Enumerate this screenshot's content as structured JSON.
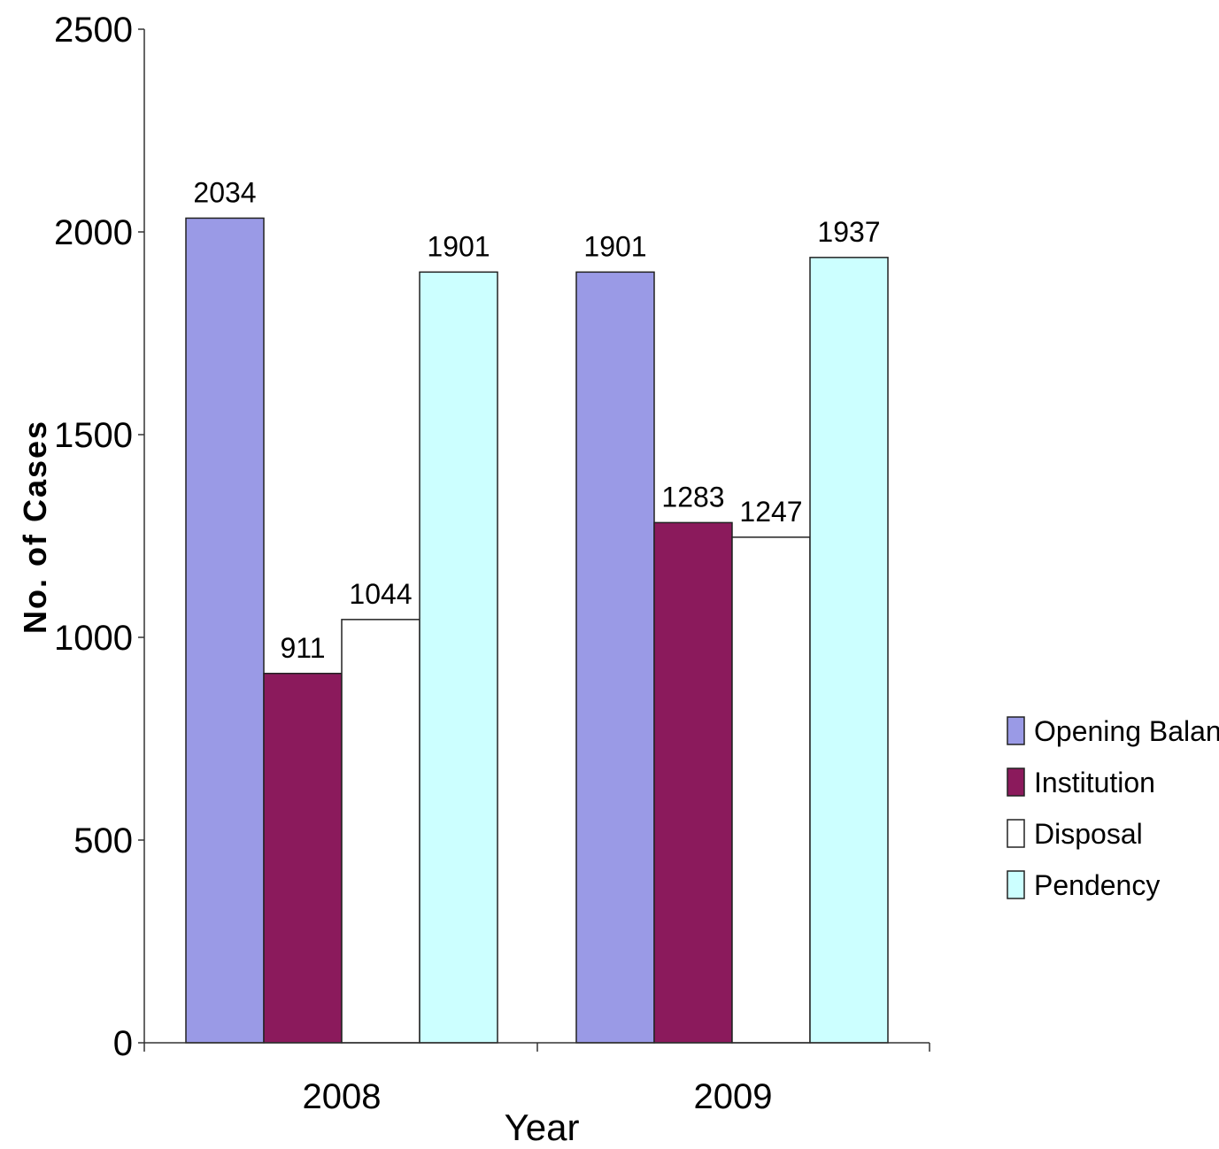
{
  "chart_data": {
    "type": "bar",
    "categories": [
      "2008",
      "2009"
    ],
    "series": [
      {
        "name": "Opening Balance",
        "values": [
          2034,
          1901
        ],
        "color": "#9a9ae6"
      },
      {
        "name": "Institution",
        "values": [
          911,
          1283
        ],
        "color": "#8b1a5c"
      },
      {
        "name": "Disposal",
        "values": [
          1044,
          1247
        ],
        "color": "#ffffff"
      },
      {
        "name": "Pendency",
        "values": [
          1901,
          1937
        ],
        "color": "#ccffff"
      }
    ],
    "data_labels": [
      [
        "2034",
        "911",
        "1044",
        "1901"
      ],
      [
        "1901",
        "1283",
        "1247",
        "1937"
      ]
    ],
    "title": "",
    "xlabel": "Year",
    "ylabel": "No. of Cases",
    "ylim": [
      0,
      2500
    ],
    "yticks": [
      0,
      500,
      1000,
      1500,
      2000,
      2500
    ],
    "ytick_labels": [
      "0",
      "500",
      "1000",
      "1500",
      "2000",
      "2500"
    ],
    "grid": false,
    "legend_position": "right"
  }
}
